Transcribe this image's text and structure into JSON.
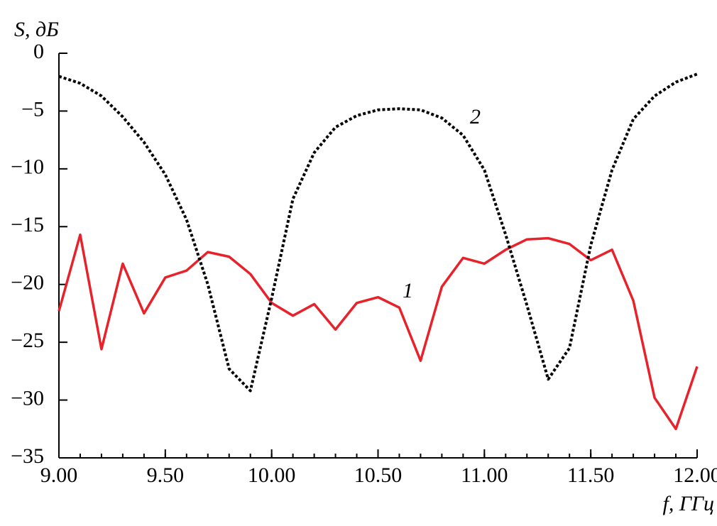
{
  "chart_data": {
    "type": "line",
    "y_label": "S, дБ",
    "x_label": "f, ГГц",
    "x": [
      9.0,
      9.1,
      9.2,
      9.3,
      9.4,
      9.5,
      9.6,
      9.7,
      9.8,
      9.9,
      10.0,
      10.1,
      10.2,
      10.3,
      10.4,
      10.5,
      10.6,
      10.7,
      10.8,
      10.9,
      11.0,
      11.1,
      11.2,
      11.3,
      11.4,
      11.5,
      11.6,
      11.7,
      11.8,
      11.9,
      12.0
    ],
    "series": [
      {
        "name": "1",
        "color": "#e8222a",
        "dash": false,
        "values": [
          -22.3,
          -15.7,
          -25.6,
          -18.2,
          -22.5,
          -19.4,
          -18.8,
          -17.2,
          -17.6,
          -19.1,
          -21.6,
          -22.7,
          -21.7,
          -23.9,
          -21.6,
          -21.1,
          -22.0,
          -26.6,
          -20.2,
          -17.7,
          -18.2,
          -17.0,
          -16.1,
          -16.0,
          -16.5,
          -17.9,
          -17.0,
          -21.4,
          -29.8,
          -32.5,
          -27.1
        ]
      },
      {
        "name": "2",
        "color": "#000000",
        "dash": true,
        "values": [
          -2.0,
          -2.6,
          -3.7,
          -5.5,
          -7.7,
          -10.5,
          -14.4,
          -20.0,
          -27.3,
          -29.2,
          -21.2,
          -12.6,
          -8.6,
          -6.4,
          -5.4,
          -4.9,
          -4.8,
          -4.9,
          -5.6,
          -7.1,
          -10.1,
          -15.7,
          -21.8,
          -28.2,
          -25.5,
          -16.6,
          -10.1,
          -5.7,
          -3.7,
          -2.5,
          -1.8
        ]
      }
    ],
    "xlim": [
      9.0,
      12.0
    ],
    "ylim": [
      -35,
      0
    ],
    "xticks": [
      {
        "value": 9.0,
        "label": "9.00"
      },
      {
        "value": 9.5,
        "label": "9.50"
      },
      {
        "value": 10.0,
        "label": "10.00"
      },
      {
        "value": 10.5,
        "label": "10.50"
      },
      {
        "value": 11.0,
        "label": "11.00"
      },
      {
        "value": 11.5,
        "label": "11.50"
      },
      {
        "value": 12.0,
        "label": "12.00"
      }
    ],
    "yticks": [
      0,
      {
        "value": -5,
        "label": "−5"
      },
      {
        "value": -10,
        "label": "−10"
      },
      {
        "value": -15,
        "label": "−15"
      },
      {
        "value": -20,
        "label": "−20"
      },
      {
        "value": -25,
        "label": "−25"
      },
      {
        "value": -30,
        "label": "−30"
      },
      {
        "value": -35,
        "label": "−35"
      }
    ],
    "grid": false
  }
}
